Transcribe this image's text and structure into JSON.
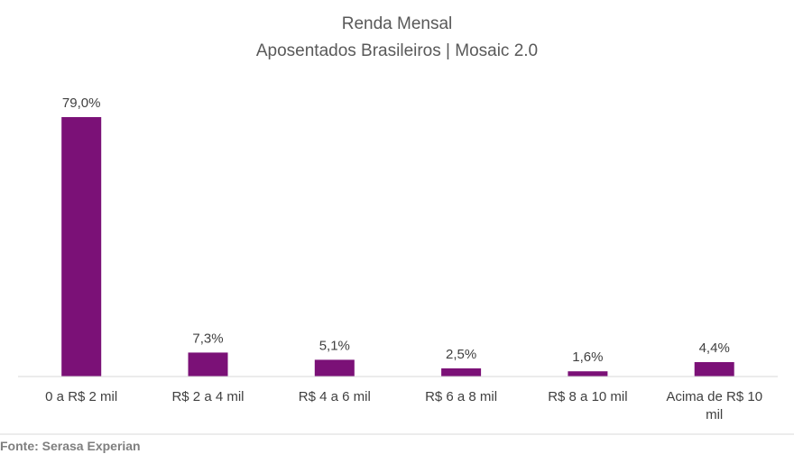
{
  "chart_data": {
    "type": "bar",
    "title": "Renda Mensal",
    "subtitle": "Aposentados Brasileiros | Mosaic 2.0",
    "categories": [
      "0 a R$ 2 mil",
      "R$ 2 a 4 mil",
      "R$ 4 a 6 mil",
      "R$ 6 a 8 mil",
      "R$ 8 a 10 mil",
      "Acima de R$ 10 mil"
    ],
    "category_lines": [
      [
        "0 a R$ 2 mil"
      ],
      [
        "R$ 2 a 4 mil"
      ],
      [
        "R$ 4 a 6 mil"
      ],
      [
        "R$ 6 a 8 mil"
      ],
      [
        "R$ 8 a 10 mil"
      ],
      [
        "Acima de R$ 10",
        "mil"
      ]
    ],
    "values": [
      79.0,
      7.3,
      5.1,
      2.5,
      1.6,
      4.4
    ],
    "value_labels": [
      "79,0%",
      "7,3%",
      "5,1%",
      "2,5%",
      "1,6%",
      "4,4%"
    ],
    "xlabel": "",
    "ylabel": "",
    "ylim": [
      0,
      79.0
    ],
    "grid": false,
    "legend": "none",
    "bar_color": "#7b1177",
    "axis_color": "#d9d9d9"
  },
  "source": "Fonte: Serasa Experian"
}
